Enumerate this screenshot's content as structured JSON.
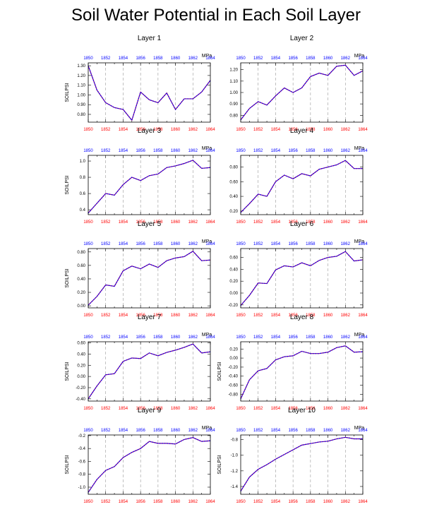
{
  "title": "Soil Water Potential in Each Soil Layer",
  "chart_data": [
    {
      "type": "line",
      "title": "Layer 1",
      "ylabel": "SOILPSI",
      "unit": "MPa",
      "x": [
        1850,
        1851,
        1852,
        1853,
        1854,
        1855,
        1856,
        1857,
        1858,
        1859,
        1860,
        1861,
        1862,
        1863,
        1864
      ],
      "series": [
        {
          "values": [
            1.3,
            1.05,
            0.92,
            0.87,
            0.85,
            0.74,
            1.03,
            0.95,
            0.92,
            1.02,
            0.85,
            0.96,
            0.96,
            1.03,
            1.15
          ]
        }
      ],
      "ylim": [
        0.72,
        1.33
      ],
      "yticks": [
        "0.80",
        "0.90",
        "1.00",
        "1.10",
        "1.20",
        "1.30"
      ],
      "xticks": [
        "1850",
        "1852",
        "1854",
        "1856",
        "1858",
        "1860",
        "1862",
        "1864"
      ]
    },
    {
      "type": "line",
      "title": "Layer 2",
      "ylabel": "",
      "unit": "MPa",
      "x": [
        1850,
        1851,
        1852,
        1853,
        1854,
        1855,
        1856,
        1857,
        1858,
        1859,
        1860,
        1861,
        1862,
        1863,
        1864
      ],
      "series": [
        {
          "values": [
            0.76,
            0.86,
            0.92,
            0.89,
            0.97,
            1.04,
            1.0,
            1.04,
            1.14,
            1.17,
            1.15,
            1.23,
            1.24,
            1.15,
            1.19
          ]
        }
      ],
      "ylim": [
        0.74,
        1.26
      ],
      "yticks": [
        "0.80",
        "0.90",
        "1.00",
        "1.10",
        "1.20"
      ],
      "xticks": [
        "1850",
        "1852",
        "1854",
        "1856",
        "1858",
        "1860",
        "1862",
        "1864"
      ]
    },
    {
      "type": "line",
      "title": "Layer 3",
      "ylabel": "SOILPSI",
      "unit": "MPa",
      "x": [
        1850,
        1851,
        1852,
        1853,
        1854,
        1855,
        1856,
        1857,
        1858,
        1859,
        1860,
        1861,
        1862,
        1863,
        1864
      ],
      "series": [
        {
          "values": [
            0.36,
            0.48,
            0.6,
            0.58,
            0.71,
            0.8,
            0.76,
            0.82,
            0.84,
            0.92,
            0.94,
            0.97,
            1.01,
            0.91,
            0.92
          ]
        }
      ],
      "ylim": [
        0.34,
        1.07
      ],
      "yticks": [
        "0.4",
        "0.6",
        "0.8",
        "1.0"
      ],
      "xticks": [
        "1850",
        "1852",
        "1854",
        "1856",
        "1858",
        "1860",
        "1862",
        "1864"
      ]
    },
    {
      "type": "line",
      "title": "Layer 4",
      "ylabel": "",
      "unit": "MPa",
      "x": [
        1850,
        1851,
        1852,
        1853,
        1854,
        1855,
        1856,
        1857,
        1858,
        1859,
        1860,
        1861,
        1862,
        1863,
        1864
      ],
      "series": [
        {
          "values": [
            0.18,
            0.3,
            0.43,
            0.4,
            0.6,
            0.69,
            0.64,
            0.71,
            0.68,
            0.77,
            0.8,
            0.83,
            0.89,
            0.78,
            0.78
          ]
        }
      ],
      "ylim": [
        0.15,
        0.96
      ],
      "yticks": [
        "0.20",
        "0.40",
        "0.60",
        "0.80"
      ],
      "xticks": [
        "1850",
        "1852",
        "1854",
        "1856",
        "1858",
        "1860",
        "1862",
        "1864"
      ]
    },
    {
      "type": "line",
      "title": "Layer 5",
      "ylabel": "SOILPSI",
      "unit": "MPa",
      "x": [
        1850,
        1851,
        1852,
        1853,
        1854,
        1855,
        1856,
        1857,
        1858,
        1859,
        1860,
        1861,
        1862,
        1863,
        1864
      ],
      "series": [
        {
          "values": [
            0.01,
            0.14,
            0.31,
            0.29,
            0.52,
            0.59,
            0.55,
            0.62,
            0.57,
            0.67,
            0.71,
            0.73,
            0.81,
            0.67,
            0.68
          ]
        }
      ],
      "ylim": [
        -0.03,
        0.85
      ],
      "yticks": [
        "0.00",
        "0.20",
        "0.40",
        "0.60",
        "0.80"
      ],
      "xticks": [
        "1850",
        "1852",
        "1854",
        "1856",
        "1858",
        "1860",
        "1862",
        "1864"
      ]
    },
    {
      "type": "line",
      "title": "Layer 6",
      "ylabel": "",
      "unit": "MPa",
      "x": [
        1850,
        1851,
        1852,
        1853,
        1854,
        1855,
        1856,
        1857,
        1858,
        1859,
        1860,
        1861,
        1862,
        1863,
        1864
      ],
      "series": [
        {
          "values": [
            -0.21,
            -0.04,
            0.17,
            0.16,
            0.39,
            0.46,
            0.44,
            0.51,
            0.46,
            0.55,
            0.6,
            0.62,
            0.7,
            0.54,
            0.56
          ]
        }
      ],
      "ylim": [
        -0.25,
        0.75
      ],
      "yticks": [
        "-0.20",
        "0.00",
        "0.20",
        "0.40",
        "0.60"
      ],
      "xticks": [
        "1850",
        "1852",
        "1854",
        "1856",
        "1858",
        "1860",
        "1862",
        "1864"
      ]
    },
    {
      "type": "line",
      "title": "Layer 7",
      "ylabel": "SOILPSI",
      "unit": "MPa",
      "x": [
        1850,
        1851,
        1852,
        1853,
        1854,
        1855,
        1856,
        1857,
        1858,
        1859,
        1860,
        1861,
        1862,
        1863,
        1864
      ],
      "series": [
        {
          "values": [
            -0.4,
            -0.17,
            0.03,
            0.05,
            0.27,
            0.33,
            0.32,
            0.42,
            0.37,
            0.43,
            0.47,
            0.52,
            0.58,
            0.42,
            0.44
          ]
        }
      ],
      "ylim": [
        -0.44,
        0.62
      ],
      "yticks": [
        "-0.40",
        "-0.20",
        "0.00",
        "0.20",
        "0.40",
        "0.60"
      ],
      "xticks": [
        "1850",
        "1852",
        "1854",
        "1856",
        "1858",
        "1860",
        "1862",
        "1864"
      ]
    },
    {
      "type": "line",
      "title": "Layer 8",
      "ylabel": "SOILPSI",
      "unit": "MPa",
      "x": [
        1850,
        1851,
        1852,
        1853,
        1854,
        1855,
        1856,
        1857,
        1858,
        1859,
        1860,
        1861,
        1862,
        1863,
        1864
      ],
      "series": [
        {
          "values": [
            -0.9,
            -0.48,
            -0.28,
            -0.23,
            -0.04,
            0.03,
            0.05,
            0.15,
            0.1,
            0.1,
            0.13,
            0.23,
            0.27,
            0.13,
            0.14
          ]
        }
      ],
      "ylim": [
        -0.95,
        0.36
      ],
      "yticks": [
        "-0.80",
        "-0.60",
        "-0.40",
        "-0.20",
        "0.00",
        "0.20"
      ],
      "xticks": [
        "1850",
        "1852",
        "1854",
        "1856",
        "1858",
        "1860",
        "1862",
        "1864"
      ]
    },
    {
      "type": "line",
      "title": "Layer 9",
      "ylabel": "SOILPSI",
      "unit": "MPa",
      "x": [
        1850,
        1851,
        1852,
        1853,
        1854,
        1855,
        1856,
        1857,
        1858,
        1859,
        1860,
        1861,
        1862,
        1863,
        1864
      ],
      "series": [
        {
          "values": [
            -1.08,
            -0.88,
            -0.74,
            -0.68,
            -0.54,
            -0.46,
            -0.4,
            -0.29,
            -0.32,
            -0.32,
            -0.33,
            -0.26,
            -0.23,
            -0.29,
            -0.28
          ]
        }
      ],
      "ylim": [
        -1.11,
        -0.19
      ],
      "yticks": [
        "-1.0",
        "-0.8",
        "-0.6",
        "-0.4",
        "-0.2"
      ],
      "xticks": [
        "1850",
        "1852",
        "1854",
        "1856",
        "1858",
        "1860",
        "1862",
        "1864"
      ]
    },
    {
      "type": "line",
      "title": "Layer 10",
      "ylabel": "SOILPSI",
      "unit": "MPa",
      "x": [
        1850,
        1851,
        1852,
        1853,
        1854,
        1855,
        1856,
        1857,
        1858,
        1859,
        1860,
        1861,
        1862,
        1863,
        1864
      ],
      "series": [
        {
          "values": [
            -1.46,
            -1.28,
            -1.18,
            -1.12,
            -1.05,
            -0.99,
            -0.93,
            -0.87,
            -0.85,
            -0.83,
            -0.82,
            -0.79,
            -0.77,
            -0.79,
            -0.79
          ]
        }
      ],
      "ylim": [
        -1.5,
        -0.74
      ],
      "yticks": [
        "-1.4",
        "-1.2",
        "-1.0",
        "-0.8"
      ],
      "xticks": [
        "1850",
        "1852",
        "1854",
        "1856",
        "1858",
        "1860",
        "1862",
        "1864"
      ]
    }
  ]
}
